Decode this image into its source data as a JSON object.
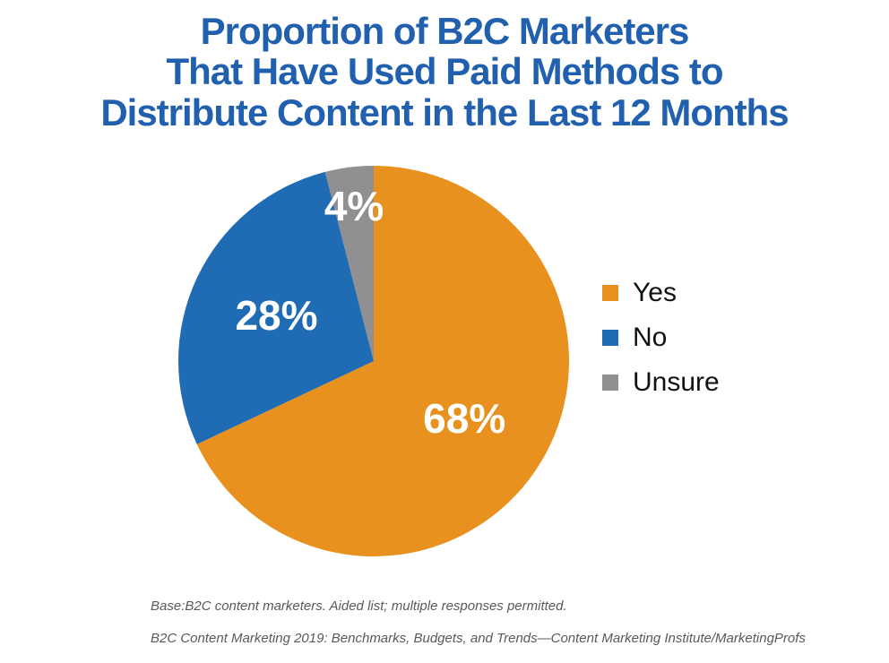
{
  "header": {
    "lines": [
      "Proportion of B2C Marketers",
      "That Have Used Paid Methods to",
      "Distribute Content in the Last 12 Months"
    ],
    "title_color": "#2060AE"
  },
  "chart_data": {
    "type": "pie",
    "title": "Proportion of B2C Marketers That Have Used Paid Methods to Distribute Content in the Last 12 Months",
    "start_angle_deg": 0,
    "direction": "clockwise",
    "legend_position": "right",
    "data_label_format": "percent",
    "data_label_color": "#ffffff",
    "slices": [
      {
        "label": "Yes",
        "value": 68,
        "data_label": "68%",
        "color": "#E8911F"
      },
      {
        "label": "No",
        "value": 28,
        "data_label": "28%",
        "color": "#1F6CB4"
      },
      {
        "label": "Unsure",
        "value": 4,
        "data_label": "4%",
        "color": "#909092"
      }
    ]
  },
  "footnotes": {
    "base": "Base:B2C content marketers. Aided list; multiple responses permitted.",
    "source": "B2C Content Marketing 2019: Benchmarks, Budgets, and Trends—Content Marketing Institute/MarketingProfs"
  }
}
